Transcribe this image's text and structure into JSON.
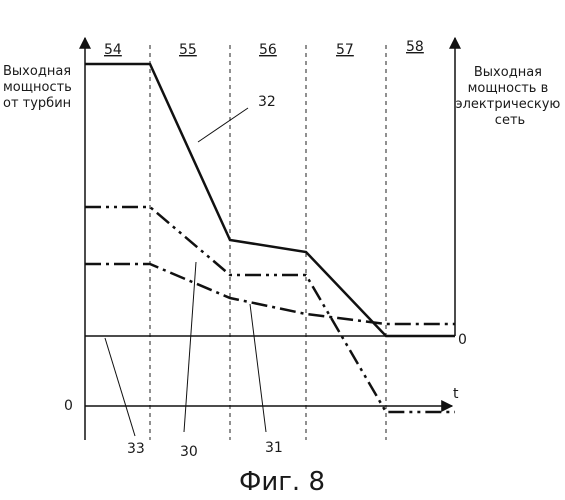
{
  "left_axis_label": [
    "Выходная",
    "мощность",
    "от турбин"
  ],
  "right_axis_label": [
    "Выходная",
    "мощность в",
    "электрическую",
    "сеть"
  ],
  "time_axis_label": "t",
  "zero_left": "0",
  "zero_right": "0",
  "phases": [
    "54",
    "55",
    "56",
    "57",
    "58"
  ],
  "curve_labels": {
    "c32": "32",
    "c30": "30",
    "c31": "31",
    "c33": "33"
  },
  "caption": "Фиг. 8"
}
